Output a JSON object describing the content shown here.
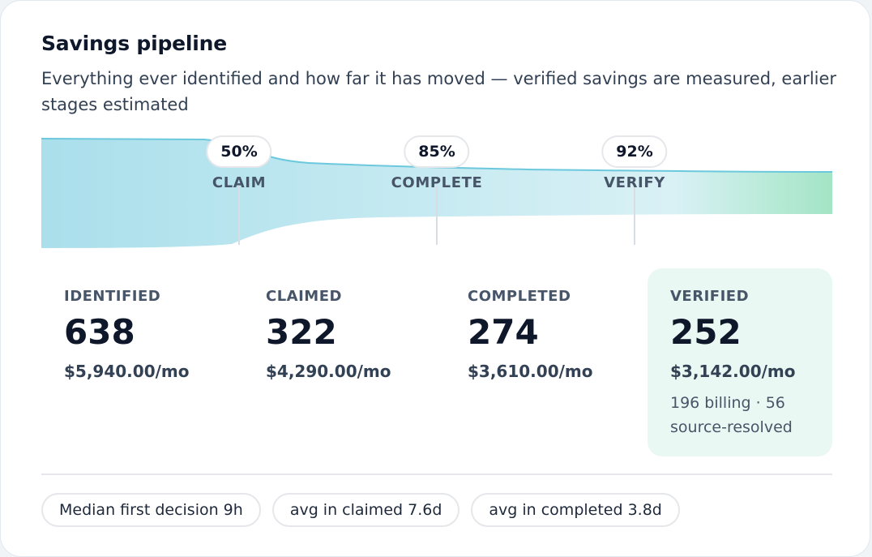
{
  "header": {
    "title": "Savings pipeline",
    "subtitle": "Everything ever identified and how far it has moved — verified savings are measured, earlier stages estimated"
  },
  "funnel": {
    "colors": {
      "start": "#a9dfec",
      "end": "#a4e6c6",
      "edge": "#6cc8dd"
    },
    "transitions": [
      {
        "percent": "50%",
        "label": "CLAIM"
      },
      {
        "percent": "85%",
        "label": "COMPLETE"
      },
      {
        "percent": "92%",
        "label": "VERIFY"
      }
    ]
  },
  "stats": [
    {
      "label": "IDENTIFIED",
      "count": "638",
      "money": "$5,940.00/mo"
    },
    {
      "label": "CLAIMED",
      "count": "322",
      "money": "$4,290.00/mo"
    },
    {
      "label": "COMPLETED",
      "count": "274",
      "money": "$3,610.00/mo"
    },
    {
      "label": "VERIFIED",
      "count": "252",
      "money": "$3,142.00/mo",
      "note": "196 billing · 56 source-resolved"
    }
  ],
  "chips": [
    {
      "label": "Median first decision 9h"
    },
    {
      "label": "avg in claimed 7.6d"
    },
    {
      "label": "avg in completed 3.8d"
    }
  ]
}
